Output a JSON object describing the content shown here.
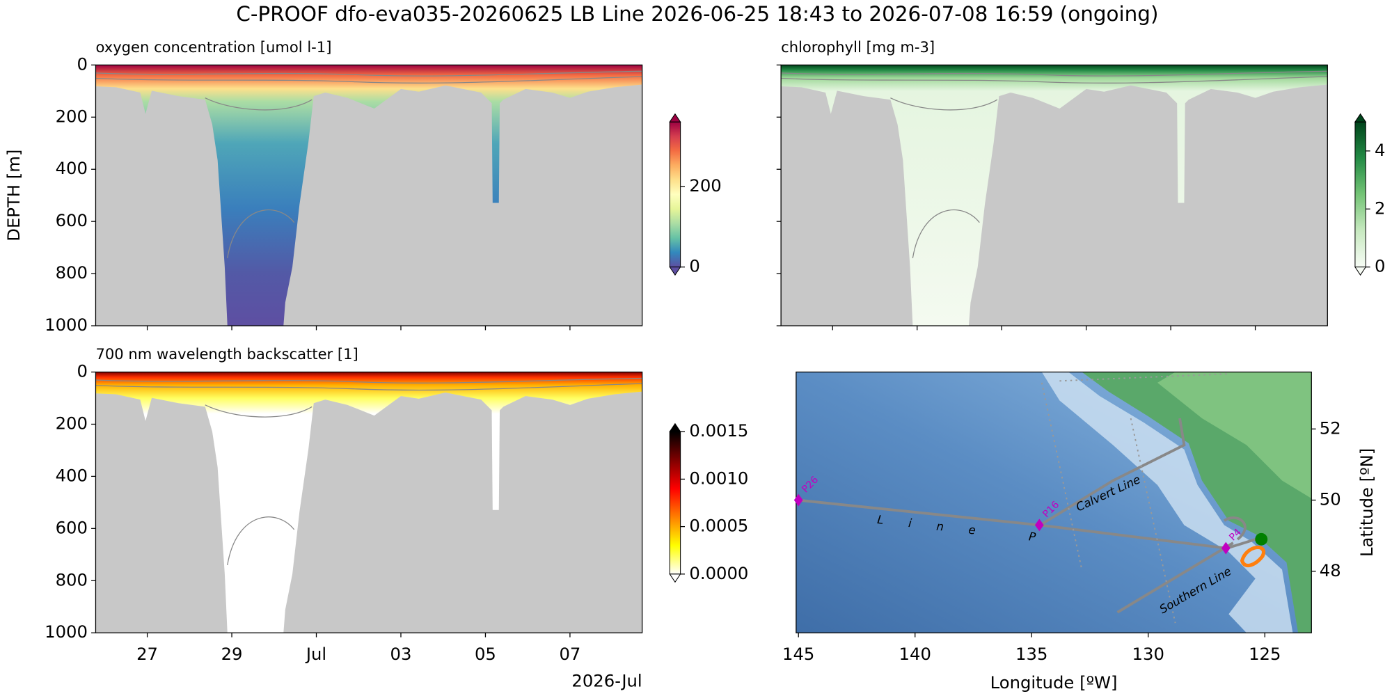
{
  "title": "C-PROOF dfo-eva035-20260625   LB Line   2026-06-25 18:43 to 2026-07-08 16:59 (ongoing)",
  "chart_data": [
    {
      "type": "heatmap",
      "title": "oxygen concentration [umol l-1]",
      "y_label": "DEPTH [m]",
      "xlim": [
        "2026-06-25 18:43",
        "2026-07-08 16:59"
      ],
      "xticks": [
        {
          "value": "2026-06-27",
          "label": "27"
        },
        {
          "value": "2026-06-29",
          "label": "29"
        },
        {
          "value": "2026-07-01",
          "label": "Jul"
        },
        {
          "value": "2026-07-03",
          "label": "03"
        },
        {
          "value": "2026-07-05",
          "label": "05"
        },
        {
          "value": "2026-07-07",
          "label": "07"
        }
      ],
      "x_tick_labels": false,
      "ylim": [
        1000,
        0
      ],
      "yticks": [
        0,
        200,
        400,
        600,
        800,
        1000
      ],
      "y_tick_labels": true,
      "colorbar": {
        "lim": [
          0,
          360
        ],
        "ticks": [
          0,
          200
        ],
        "extend": "both",
        "colors": [
          "#5e4fa2",
          "#3288bd",
          "#66c2a5",
          "#abdda4",
          "#e6f598",
          "#ffffbf",
          "#fee08b",
          "#fdae61",
          "#f46d43",
          "#d53e4f",
          "#9e0142"
        ]
      }
    },
    {
      "type": "heatmap",
      "title": "chlorophyll [mg m-3]",
      "xlim": [
        "2026-06-25 18:43",
        "2026-07-08 16:59"
      ],
      "xticks": [
        {
          "value": "2026-06-27",
          "label": "27"
        },
        {
          "value": "2026-06-29",
          "label": "29"
        },
        {
          "value": "2026-07-01",
          "label": "Jul"
        },
        {
          "value": "2026-07-03",
          "label": "03"
        },
        {
          "value": "2026-07-05",
          "label": "05"
        },
        {
          "value": "2026-07-07",
          "label": "07"
        }
      ],
      "x_tick_labels": false,
      "ylim": [
        1000,
        0
      ],
      "yticks": [
        0,
        200,
        400,
        600,
        800,
        1000
      ],
      "y_tick_labels": false,
      "colorbar": {
        "lim": [
          0,
          5
        ],
        "ticks": [
          0,
          2,
          4
        ],
        "extend": "both",
        "colors": [
          "#f7fcf5",
          "#c7e9c0",
          "#74c476",
          "#238b45",
          "#00441b"
        ]
      }
    },
    {
      "type": "heatmap",
      "title": "700 nm wavelength backscatter [1]",
      "x_offset_label": "2026-Jul",
      "xlim": [
        "2026-06-25 18:43",
        "2026-07-08 16:59"
      ],
      "xticks": [
        {
          "value": "2026-06-27",
          "label": "27"
        },
        {
          "value": "2026-06-29",
          "label": "29"
        },
        {
          "value": "2026-07-01",
          "label": "Jul"
        },
        {
          "value": "2026-07-03",
          "label": "03"
        },
        {
          "value": "2026-07-05",
          "label": "05"
        },
        {
          "value": "2026-07-07",
          "label": "07"
        }
      ],
      "x_tick_labels": true,
      "ylim": [
        1000,
        0
      ],
      "yticks": [
        0,
        200,
        400,
        600,
        800,
        1000
      ],
      "y_tick_labels": true,
      "colorbar": {
        "lim": [
          0,
          0.0015
        ],
        "extend": "both",
        "ticks": [
          {
            "value": 0,
            "label": "0.0000"
          },
          {
            "value": 0.0005,
            "label": "0.0005"
          },
          {
            "value": 0.001,
            "label": "0.0010"
          },
          {
            "value": 0.0015,
            "label": "0.0015"
          }
        ],
        "colors": [
          "#ffffff",
          "#ffff00",
          "#ff8000",
          "#ff0000",
          "#800000",
          "#000000"
        ]
      }
    },
    {
      "type": "map",
      "x_label": "Longitude [ºW]",
      "y_label": "Latitude [ºN]",
      "y_axis_side": "right",
      "xlim": [
        -145.1,
        -123
      ],
      "ylim": [
        46.27,
        53.6
      ],
      "xticks": [
        {
          "value": -145,
          "label": "145"
        },
        {
          "value": -140,
          "label": "140"
        },
        {
          "value": -135,
          "label": "135"
        },
        {
          "value": -130,
          "label": "130"
        },
        {
          "value": -125,
          "label": "125"
        }
      ],
      "yticks": [
        48,
        50,
        52
      ],
      "stations": [
        {
          "name": "P26",
          "lon": -145,
          "lat": 50
        },
        {
          "name": "P16",
          "lon": -134.67,
          "lat": 49.3
        },
        {
          "name": "P4",
          "lon": -126.67,
          "lat": 48.65
        }
      ],
      "station_color": "#c000c0",
      "annotations": [
        "Line P",
        "Calvert Line",
        "Southern Line"
      ],
      "glider_position": {
        "lon": -125.15,
        "lat": 48.9,
        "color": "#008000"
      }
    }
  ]
}
